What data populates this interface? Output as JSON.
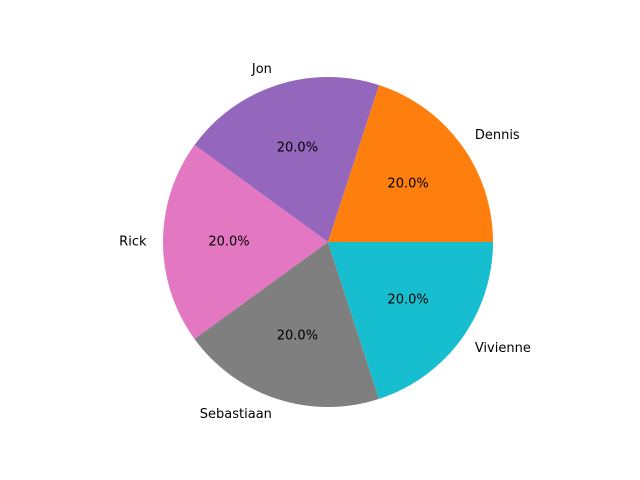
{
  "chart_data": {
    "type": "pie",
    "title": "",
    "labels": [
      "Dennis",
      "Jon",
      "Rick",
      "Sebastiaan",
      "Vivienne"
    ],
    "values": [
      20,
      20,
      20,
      20,
      20
    ],
    "percent_labels": [
      "20.0%",
      "20.0%",
      "20.0%",
      "20.0%",
      "20.0%"
    ],
    "colors": [
      "#ff7f0e",
      "#9467bd",
      "#e377c2",
      "#7f7f7f",
      "#17becf"
    ],
    "start_angle_deg": 0,
    "direction": "counterclockwise",
    "legend": "none"
  }
}
